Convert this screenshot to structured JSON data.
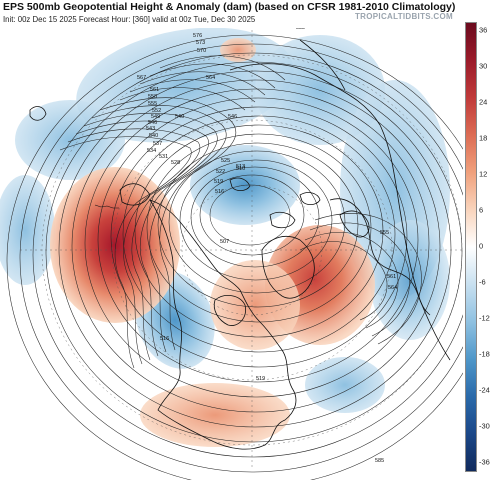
{
  "header": {
    "title": "EPS 500mb Geopotential Height & Anomaly (dam) (based on CFSR 1981-2010 Climatology)",
    "subtitle": "Init: 00z Dec 15 2025   Forecast Hour: [360]   valid at 00z Tue, Dec 30 2025",
    "watermark": "TROPICALTIDBITS.COM"
  },
  "colorbar": {
    "ticks": [
      "36",
      "30",
      "24",
      "18",
      "12",
      "6",
      "0",
      "-6",
      "-12",
      "-18",
      "-24",
      "-30",
      "-36"
    ],
    "stops": [
      {
        "v": 36,
        "color": "#6b0a1e"
      },
      {
        "v": 30,
        "color": "#9b1b2a"
      },
      {
        "v": 24,
        "color": "#c03a3a"
      },
      {
        "v": 18,
        "color": "#dc6c54"
      },
      {
        "v": 12,
        "color": "#f0a07c"
      },
      {
        "v": 6,
        "color": "#f9d4bc"
      },
      {
        "v": 0,
        "color": "#ffffff"
      },
      {
        "v": -6,
        "color": "#c8e0f0"
      },
      {
        "v": -12,
        "color": "#8fc1e1"
      },
      {
        "v": -18,
        "color": "#4f97c9"
      },
      {
        "v": -24,
        "color": "#2a6aaa"
      },
      {
        "v": -30,
        "color": "#1b4788"
      },
      {
        "v": -36,
        "color": "#102a5c"
      }
    ]
  },
  "contour_labels": [
    "582",
    "576",
    "573",
    "570",
    "567",
    "564",
    "561",
    "558",
    "555",
    "552",
    "549",
    "546",
    "543",
    "540",
    "537",
    "534",
    "531",
    "528",
    "525",
    "522",
    "519",
    "516",
    "513",
    "510",
    "507",
    "546",
    "540",
    "516",
    "519",
    "555",
    "561",
    "564",
    "585"
  ],
  "colors": {
    "positive_anomaly": "#d9604a",
    "negative_anomaly": "#6aa8d6",
    "contour": "#222222",
    "coast": "#111111"
  }
}
